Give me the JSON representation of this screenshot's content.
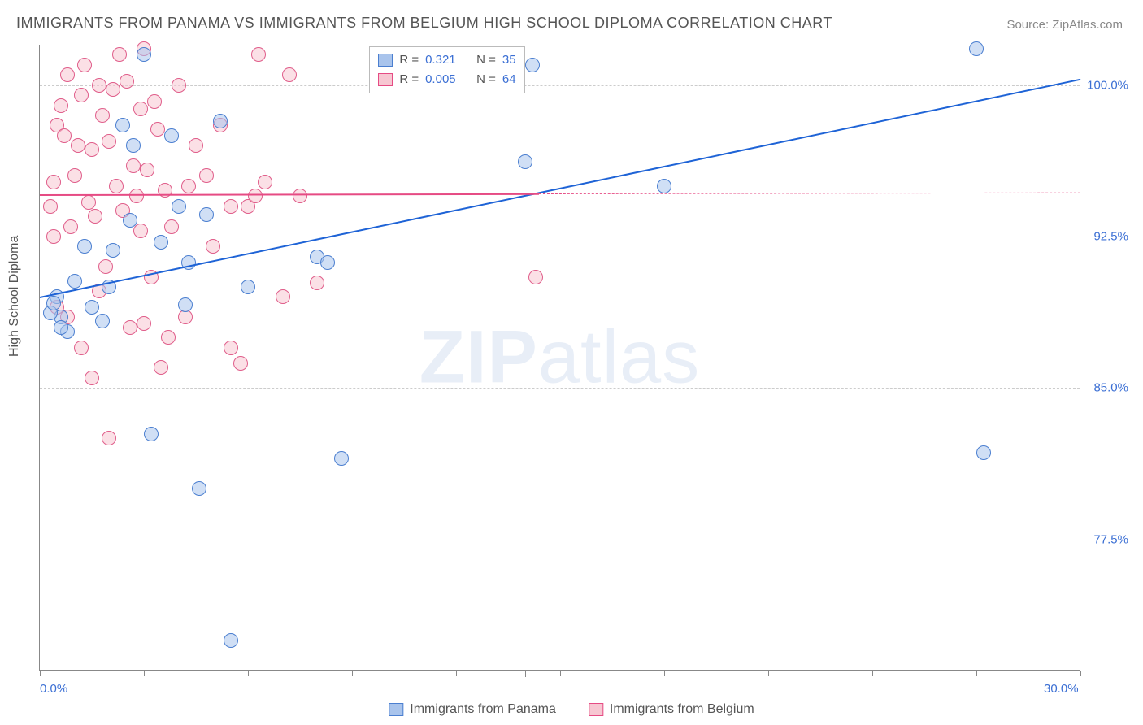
{
  "title": "IMMIGRANTS FROM PANAMA VS IMMIGRANTS FROM BELGIUM HIGH SCHOOL DIPLOMA CORRELATION CHART",
  "source": "Source: ZipAtlas.com",
  "ylabel": "High School Diploma",
  "watermark_strong": "ZIP",
  "watermark_rest": "atlas",
  "legend_top": {
    "rows": [
      {
        "swatch_fill": "#a9c4ec",
        "swatch_border": "#4b7fd0",
        "r_label": "R =",
        "r_value": "0.321",
        "n_label": "N =",
        "n_value": "35"
      },
      {
        "swatch_fill": "#f7c7d2",
        "swatch_border": "#e64b84",
        "r_label": "R =",
        "r_value": "0.005",
        "n_label": "N =",
        "n_value": "64"
      }
    ]
  },
  "legend_bottom": [
    {
      "swatch_fill": "#a9c4ec",
      "swatch_border": "#4b7fd0",
      "label": "Immigrants from Panama"
    },
    {
      "swatch_fill": "#f7c7d2",
      "swatch_border": "#e64b84",
      "label": "Immigrants from Belgium"
    }
  ],
  "chart": {
    "type": "scatter",
    "xlim": [
      0,
      30
    ],
    "ylim": [
      71,
      102
    ],
    "xticks": [
      {
        "v": 0,
        "l": "0.0%"
      },
      {
        "v": 30,
        "l": "30.0%"
      }
    ],
    "yticks": [
      {
        "v": 77.5,
        "l": "77.5%"
      },
      {
        "v": 85.0,
        "l": "85.0%"
      },
      {
        "v": 92.5,
        "l": "92.5%"
      },
      {
        "v": 100.0,
        "l": "100.0%"
      }
    ],
    "xgrid": [
      14.0
    ],
    "background": "#ffffff",
    "grid_color": "#cccccc",
    "marker_radius": 9,
    "marker_border_width": 1,
    "series": [
      {
        "name": "panama",
        "fill": "rgba(169,196,236,0.55)",
        "stroke": "#4b7fd0",
        "trend": {
          "color": "#1e63d6",
          "x1": 0,
          "y1": 89.5,
          "x2": 30,
          "y2": 100.3,
          "solid_until_x": 30,
          "width": 2
        },
        "points": [
          [
            0.6,
            88.5
          ],
          [
            0.8,
            87.8
          ],
          [
            0.5,
            89.5
          ],
          [
            0.6,
            88.0
          ],
          [
            0.3,
            88.7
          ],
          [
            0.4,
            89.2
          ],
          [
            1.5,
            89.0
          ],
          [
            1.8,
            88.3
          ],
          [
            2.0,
            90.0
          ],
          [
            2.4,
            98.0
          ],
          [
            2.6,
            93.3
          ],
          [
            3.0,
            101.5
          ],
          [
            2.7,
            97.0
          ],
          [
            3.2,
            82.7
          ],
          [
            3.5,
            92.2
          ],
          [
            4.0,
            94.0
          ],
          [
            4.3,
            91.2
          ],
          [
            4.6,
            80.0
          ],
          [
            4.8,
            93.6
          ],
          [
            5.2,
            98.2
          ],
          [
            5.5,
            72.5
          ],
          [
            6.0,
            90.0
          ],
          [
            8.0,
            91.5
          ],
          [
            8.3,
            91.2
          ],
          [
            8.7,
            81.5
          ],
          [
            4.2,
            89.1
          ],
          [
            3.8,
            97.5
          ],
          [
            2.1,
            91.8
          ],
          [
            14.0,
            96.2
          ],
          [
            14.2,
            101.0
          ],
          [
            18.0,
            95.0
          ],
          [
            27.0,
            101.8
          ],
          [
            27.2,
            81.8
          ],
          [
            1.0,
            90.3
          ],
          [
            1.3,
            92.0
          ]
        ]
      },
      {
        "name": "belgium",
        "fill": "rgba(247,199,210,0.55)",
        "stroke": "#e05d8a",
        "trend": {
          "color": "#e64b84",
          "x1": 0,
          "y1": 94.6,
          "x2": 30,
          "y2": 94.7,
          "solid_until_x": 14.4,
          "width": 2
        },
        "points": [
          [
            0.3,
            94.0
          ],
          [
            0.4,
            95.2
          ],
          [
            0.5,
            98.0
          ],
          [
            0.6,
            99.0
          ],
          [
            0.7,
            97.5
          ],
          [
            0.8,
            100.5
          ],
          [
            0.9,
            93.0
          ],
          [
            1.0,
            95.5
          ],
          [
            1.1,
            97.0
          ],
          [
            1.2,
            99.5
          ],
          [
            1.3,
            101.0
          ],
          [
            1.4,
            94.2
          ],
          [
            1.5,
            96.8
          ],
          [
            1.6,
            93.5
          ],
          [
            1.7,
            100.0
          ],
          [
            1.8,
            98.5
          ],
          [
            1.9,
            91.0
          ],
          [
            2.0,
            97.2
          ],
          [
            2.1,
            99.8
          ],
          [
            2.2,
            95.0
          ],
          [
            2.3,
            101.5
          ],
          [
            2.4,
            93.8
          ],
          [
            2.5,
            100.2
          ],
          [
            2.6,
            88.0
          ],
          [
            2.7,
            96.0
          ],
          [
            2.8,
            94.5
          ],
          [
            2.9,
            98.8
          ],
          [
            3.0,
            101.8
          ],
          [
            3.1,
            95.8
          ],
          [
            3.2,
            90.5
          ],
          [
            3.3,
            99.2
          ],
          [
            3.4,
            97.8
          ],
          [
            3.5,
            86.0
          ],
          [
            3.6,
            94.8
          ],
          [
            3.8,
            93.0
          ],
          [
            4.0,
            100.0
          ],
          [
            4.2,
            88.5
          ],
          [
            4.5,
            97.0
          ],
          [
            4.8,
            95.5
          ],
          [
            5.0,
            92.0
          ],
          [
            5.2,
            98.0
          ],
          [
            5.5,
            87.0
          ],
          [
            6.0,
            94.0
          ],
          [
            6.3,
            101.5
          ],
          [
            6.5,
            95.2
          ],
          [
            7.0,
            89.5
          ],
          [
            7.2,
            100.5
          ],
          [
            1.5,
            85.5
          ],
          [
            2.0,
            82.5
          ],
          [
            0.5,
            89.0
          ],
          [
            0.8,
            88.5
          ],
          [
            1.2,
            87.0
          ],
          [
            5.8,
            86.2
          ],
          [
            6.2,
            94.5
          ],
          [
            0.4,
            92.5
          ],
          [
            3.7,
            87.5
          ],
          [
            4.3,
            95.0
          ],
          [
            2.9,
            92.8
          ],
          [
            1.7,
            89.8
          ],
          [
            8.0,
            90.2
          ],
          [
            14.3,
            90.5
          ],
          [
            7.5,
            94.5
          ],
          [
            5.5,
            94.0
          ],
          [
            3.0,
            88.2
          ]
        ]
      }
    ]
  },
  "colors": {
    "title": "#555555",
    "source": "#888888",
    "axis": "#888888",
    "tick_label": "#3b6fd4"
  },
  "fonts": {
    "title_size": 18,
    "axis_label_size": 16,
    "tick_size": 15,
    "legend_size": 15
  }
}
